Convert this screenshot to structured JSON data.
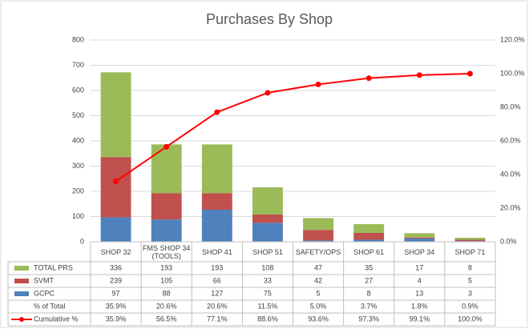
{
  "chart_data": {
    "type": "bar",
    "title": "Purchases By Shop",
    "categories": [
      "SHOP 32",
      "FMS SHOP 34 (TOOLS)",
      "SHOP 41",
      "SHOP 51",
      "SAFETY/OPS",
      "SHOP 61",
      "SHOP 34",
      "SHOP 71"
    ],
    "series": [
      {
        "name": "TOTAL PRS",
        "type": "bar",
        "color": "#9bbb59",
        "values": [
          336,
          193,
          193,
          108,
          47,
          35,
          17,
          8
        ]
      },
      {
        "name": "SVMT",
        "type": "bar",
        "color": "#c0504d",
        "values": [
          239,
          105,
          66,
          33,
          42,
          27,
          4,
          5
        ]
      },
      {
        "name": "GCPC",
        "type": "bar",
        "color": "#4f81bd",
        "values": [
          97,
          88,
          127,
          75,
          5,
          8,
          13,
          3
        ]
      },
      {
        "name": "% of Total",
        "values": [
          35.9,
          20.6,
          20.6,
          11.5,
          5.0,
          3.7,
          1.8,
          0.9
        ],
        "value_labels": [
          "35.9%",
          "20.6%",
          "20.6%",
          "11.5%",
          "5.0%",
          "3.7%",
          "1.8%",
          "0.9%"
        ]
      },
      {
        "name": "Cumulative %",
        "type": "line",
        "axis": "y2",
        "color": "#ff0000",
        "values": [
          35.9,
          56.5,
          77.1,
          88.6,
          93.6,
          97.3,
          99.1,
          100.0
        ],
        "value_labels": [
          "35.9%",
          "56.5%",
          "77.1%",
          "88.6%",
          "93.6%",
          "97.3%",
          "99.1%",
          "100.0%"
        ]
      }
    ],
    "ylim": [
      0,
      800
    ],
    "yticks": [
      0,
      100,
      200,
      300,
      400,
      500,
      600,
      700,
      800
    ],
    "y2lim": [
      0,
      120
    ],
    "y2ticks": [
      {
        "value": 0,
        "label": "0.0%"
      },
      {
        "value": 20,
        "label": "20.0%"
      },
      {
        "value": 40,
        "label": "40.0%"
      },
      {
        "value": 60,
        "label": "60.0%"
      },
      {
        "value": 80,
        "label": "80.0%"
      },
      {
        "value": 100,
        "label": "100.0%"
      },
      {
        "value": 120,
        "label": "120.0%"
      }
    ],
    "grid": true
  }
}
